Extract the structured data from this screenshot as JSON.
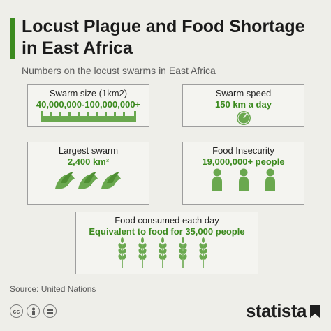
{
  "header": {
    "title": "Locust Plague and Food Shortage in East Africa",
    "subtitle": "Numbers on the locust swarms in East Africa"
  },
  "stats": {
    "swarm_size": {
      "label": "Swarm size (1km2)",
      "value": "40,000,000-100,000,000+",
      "icon": "ruler-icon"
    },
    "swarm_speed": {
      "label": "Swarm speed",
      "value": "150 km a day",
      "icon": "speedometer-icon"
    },
    "largest_swarm": {
      "label": "Largest swarm",
      "value": "2,400 km²",
      "icon": "locust-icon"
    },
    "food_insecurity": {
      "label": "Food Insecurity",
      "value": "19,000,000+ people",
      "icon": "person-icon"
    },
    "food_consumed": {
      "label": "Food consumed each day",
      "value": "Equivalent to food for 35,000 people",
      "icon": "wheat-icon"
    }
  },
  "footer": {
    "source": "Source: United Nations",
    "brand": "statista"
  },
  "colors": {
    "accent": "#3b8a1e",
    "background": "#eeeee9"
  }
}
